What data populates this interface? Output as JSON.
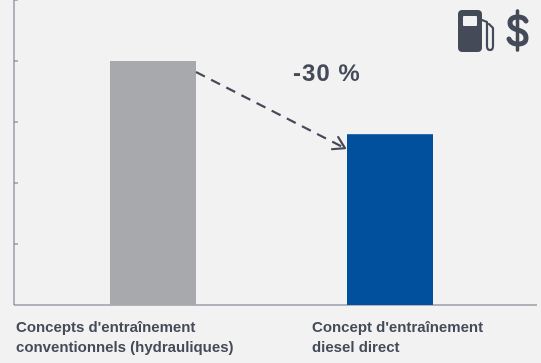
{
  "chart_data": {
    "type": "bar",
    "categories": [
      "Concepts d'entraînement\nconventionnels (hydrauliques)",
      "Concept d'entraînement\ndiesel direct"
    ],
    "values": [
      100,
      70
    ],
    "ylim": [
      0,
      125
    ],
    "y_ticks": [
      25,
      50,
      75,
      100,
      125
    ],
    "grid": false,
    "title": "",
    "xlabel": "",
    "ylabel": "",
    "annotations": [
      "-30 %"
    ],
    "bar_colors": [
      "#a7a9ad",
      "#00509e"
    ]
  },
  "colors": {
    "axis": "#6e7380",
    "text": "#444a57",
    "icon": "#444a57",
    "background": "#f2f2f3"
  },
  "icons": {
    "fuel_cost": "fuel-pump-dollar-icon"
  }
}
